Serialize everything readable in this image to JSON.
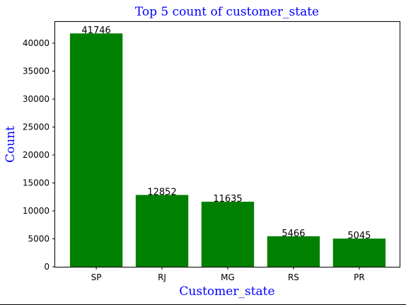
{
  "chart_data": {
    "type": "bar",
    "title": "Top 5 count of customer_state",
    "xlabel": "Customer_state",
    "ylabel": "Count",
    "categories": [
      "SP",
      "RJ",
      "MG",
      "RS",
      "PR"
    ],
    "values": [
      41746,
      12852,
      11635,
      5466,
      5045
    ],
    "data_labels": [
      "41746",
      "12852",
      "11635",
      "5466",
      "5045"
    ],
    "ylim": [
      0,
      43800
    ],
    "yticks": [
      0,
      5000,
      10000,
      15000,
      20000,
      25000,
      30000,
      35000,
      40000
    ],
    "ytick_labels": [
      "0",
      "5000",
      "10000",
      "15000",
      "20000",
      "25000",
      "30000",
      "35000",
      "40000"
    ],
    "grid": false,
    "legend": "none",
    "colors": {
      "bar": "#008000",
      "title": "#0000ff",
      "axis_label": "#0000ff",
      "text": "#000000",
      "background": "#ffffff"
    }
  }
}
